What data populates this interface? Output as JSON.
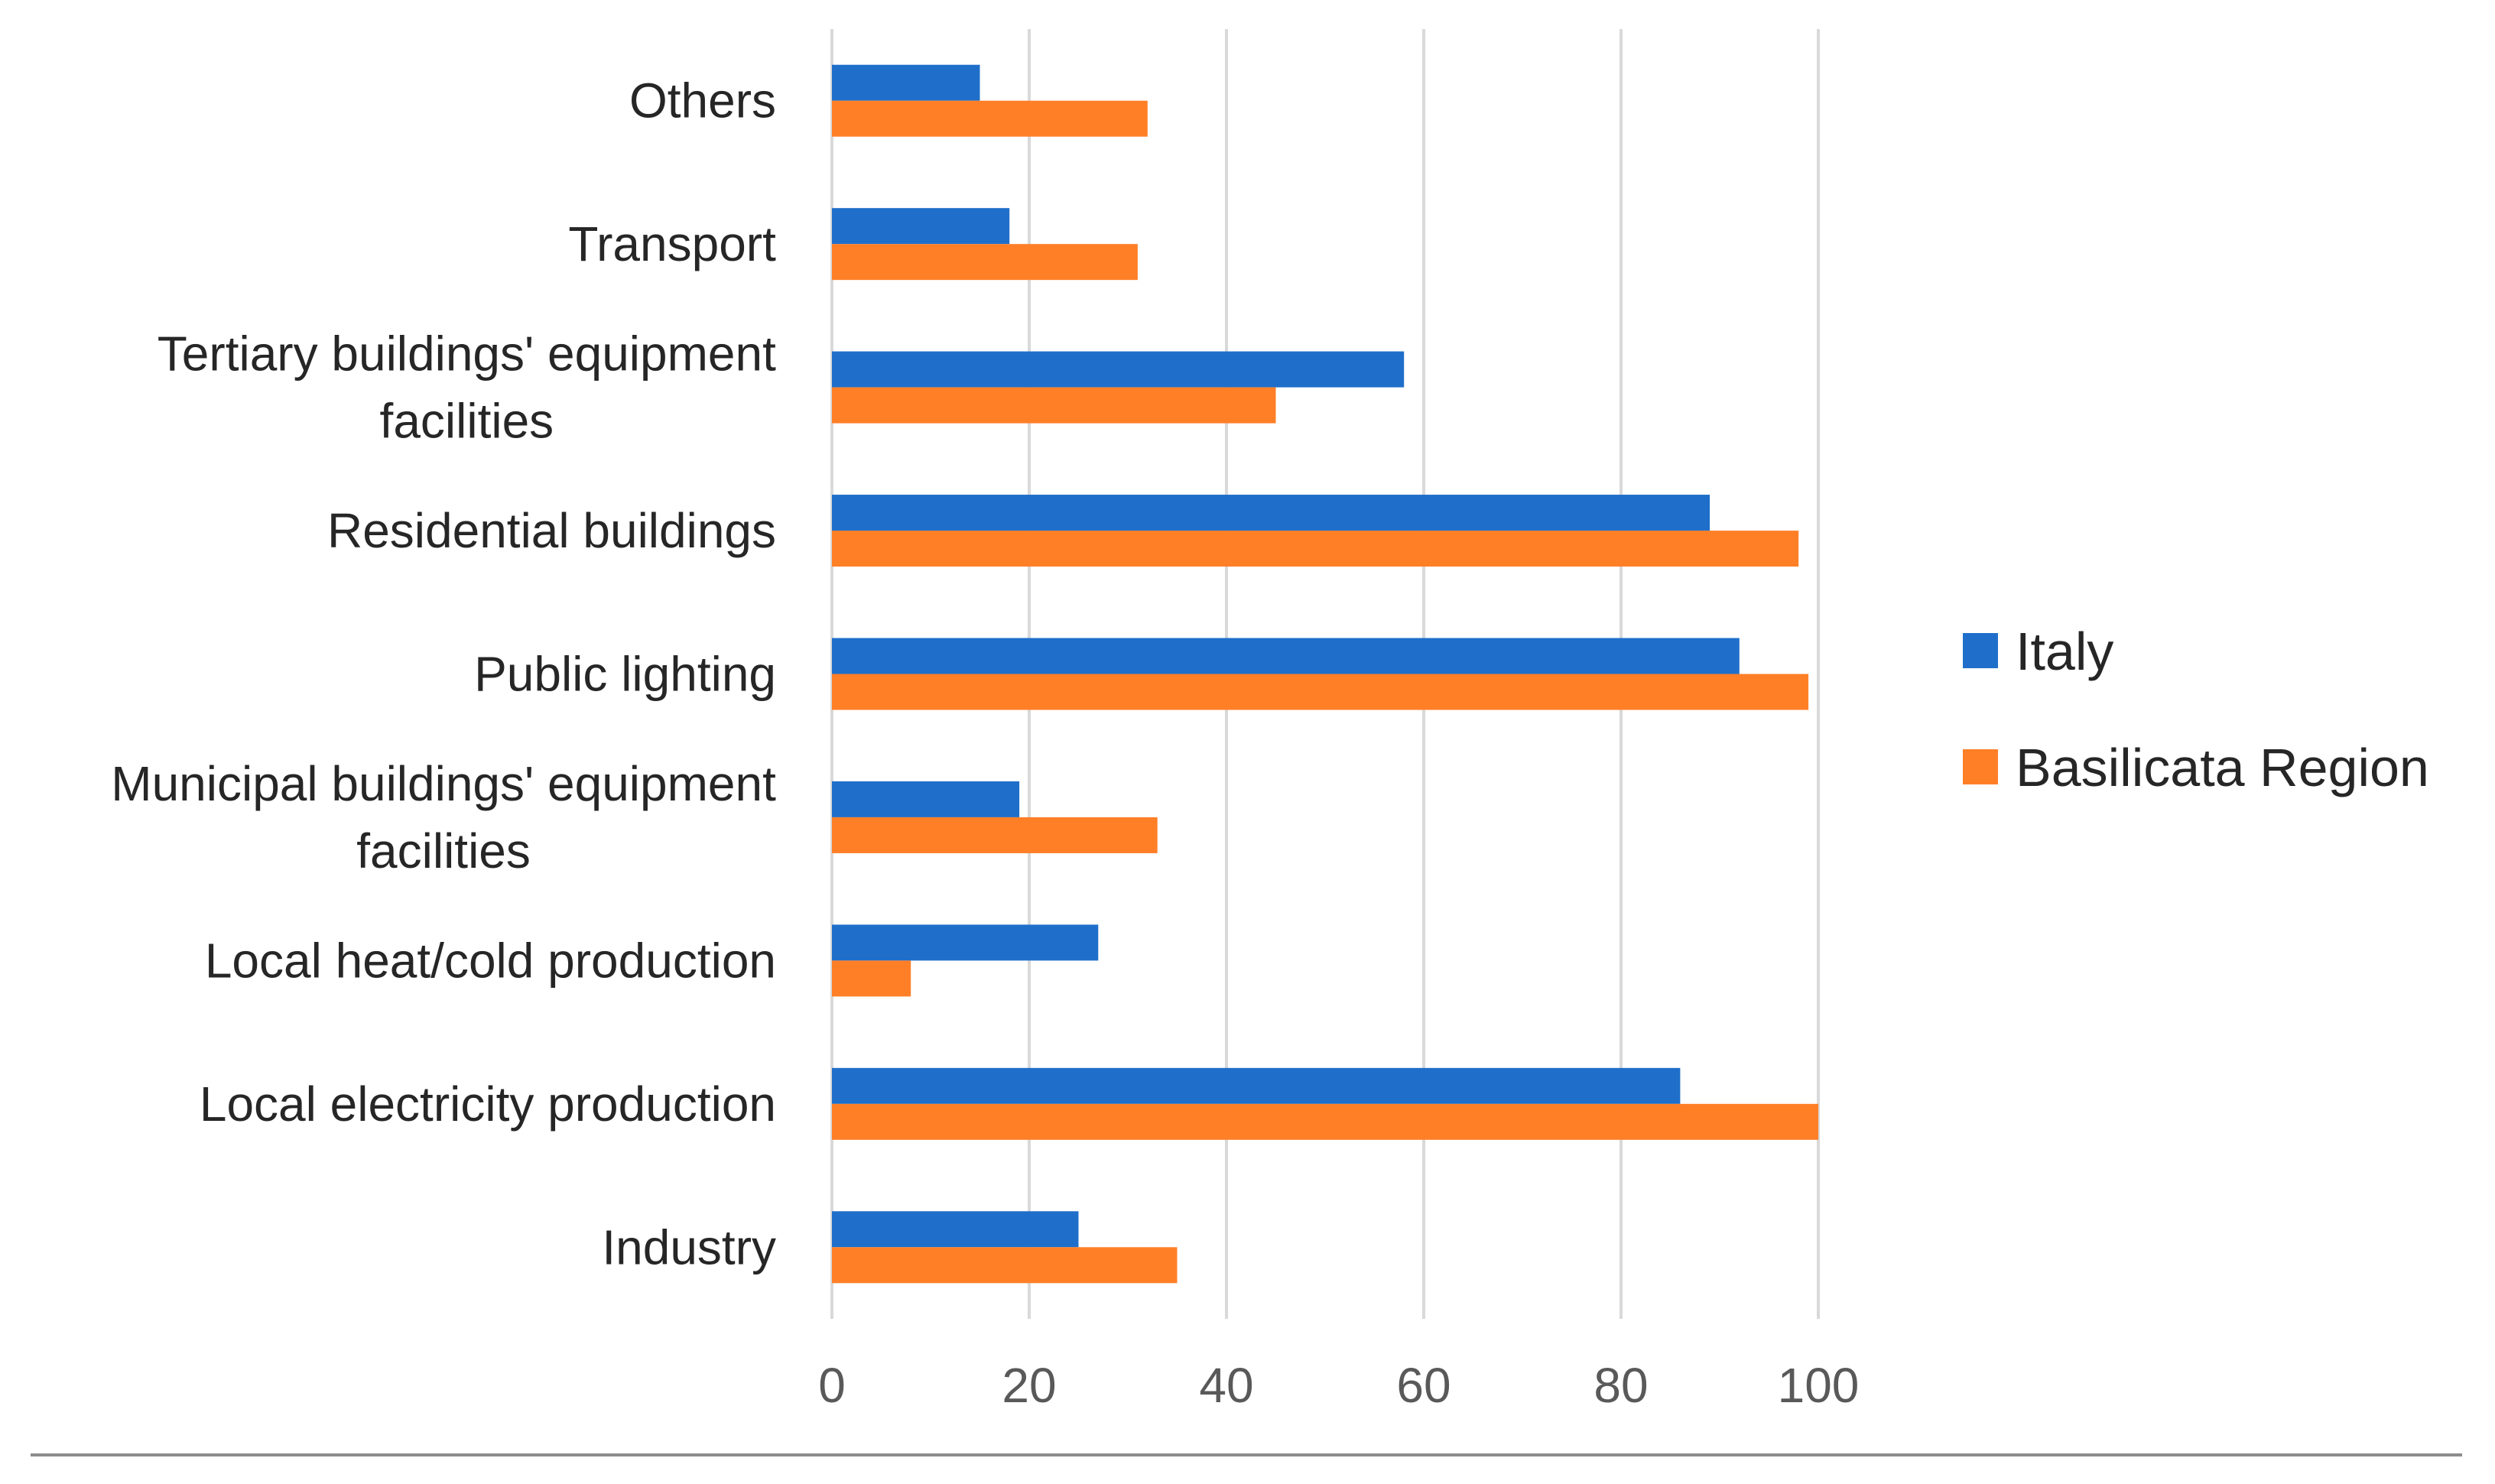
{
  "chart_data": {
    "type": "bar",
    "orientation": "horizontal",
    "categories": [
      "Industry",
      "Local electricity production",
      "Local heat/cold production",
      "Municipal buildings' equipment facilities",
      "Public lighting",
      "Residential buildings",
      "Tertiary buildings' equipment facilities",
      "Transport",
      "Others"
    ],
    "series": [
      {
        "name": "Italy",
        "color": "#1f6fca",
        "values": [
          25,
          86,
          27,
          19,
          92,
          89,
          58,
          18,
          15
        ]
      },
      {
        "name": "Basilicata Region",
        "color": "#ff7f27",
        "values": [
          35,
          100,
          8,
          33,
          99,
          98,
          45,
          31,
          32
        ]
      }
    ],
    "xlim": [
      0,
      100
    ],
    "xticks": [
      "0",
      "20",
      "40",
      "60",
      "80",
      "100"
    ],
    "grid": "vertical",
    "legend_position": "right",
    "title": "",
    "xlabel": "",
    "ylabel": ""
  }
}
